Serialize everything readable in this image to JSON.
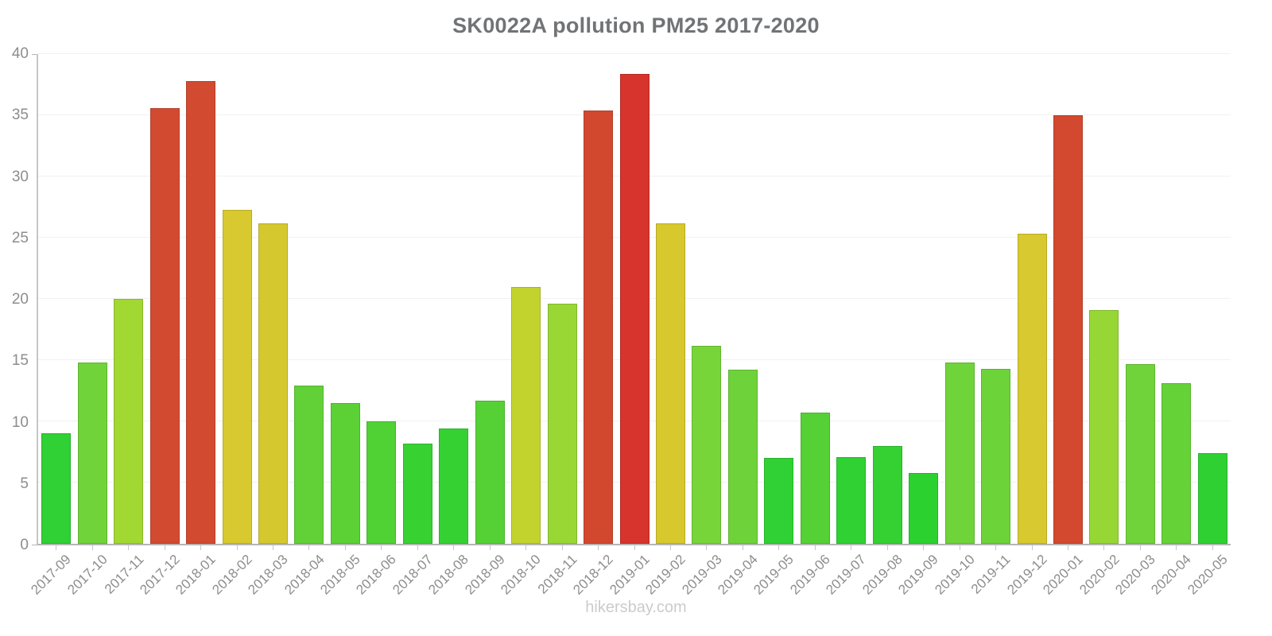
{
  "title": "SK0022A pollution PM25 2017-2020",
  "watermark": "hikersbay.com",
  "colors": {
    "title_text": "#717375",
    "axis_label_text": "#8d8d8d",
    "y_axis_line": "#c6c6c6",
    "x_axis_line": "#b5b5b5",
    "gridline": "#f1f1f1",
    "watermark_text": "#cbcbcb",
    "low_value_green": "#2bd12f",
    "mid_value_yellow": "#d7c92f",
    "high_value_red": "#d24b31"
  },
  "chart_data": {
    "type": "bar",
    "title": "SK0022A pollution PM25 2017-2020",
    "xlabel": "",
    "ylabel": "",
    "ylim": [
      0,
      40
    ],
    "yticks": [
      0,
      5,
      10,
      15,
      20,
      25,
      30,
      35,
      40
    ],
    "grid": "horizontal",
    "legend_position": "none",
    "categories": [
      "2017-09",
      "2017-10",
      "2017-11",
      "2017-12",
      "2018-01",
      "2018-02",
      "2018-03",
      "2018-04",
      "2018-05",
      "2018-06",
      "2018-07",
      "2018-08",
      "2018-09",
      "2018-10",
      "2018-11",
      "2018-12",
      "2019-01",
      "2019-02",
      "2019-03",
      "2019-04",
      "2019-05",
      "2019-06",
      "2019-07",
      "2019-08",
      "2019-09",
      "2019-10",
      "2019-11",
      "2019-12",
      "2020-01",
      "2020-02",
      "2020-03",
      "2020-04",
      "2020-05"
    ],
    "values": [
      9.0,
      14.8,
      20.0,
      35.6,
      37.8,
      27.3,
      26.2,
      12.9,
      11.5,
      10.0,
      8.2,
      9.4,
      11.7,
      21.0,
      19.6,
      35.4,
      38.4,
      26.2,
      16.2,
      14.2,
      7.0,
      10.7,
      7.1,
      8.0,
      5.8,
      14.8,
      14.3,
      25.3,
      35.0,
      19.1,
      14.7,
      13.1,
      7.4
    ],
    "bar_colors": [
      "#2fd134",
      "#70d33a",
      "#a2d832",
      "#d24b31",
      "#d24b31",
      "#d7c92f",
      "#d5c82f",
      "#62d138",
      "#5bd136",
      "#50d134",
      "#38d132",
      "#35d133",
      "#55d135",
      "#c3d32e",
      "#98d734",
      "#d2482f",
      "#d6342c",
      "#d7c82e",
      "#77d539",
      "#6ed33a",
      "#2fd134",
      "#55d135",
      "#2fd133",
      "#35d132",
      "#2bd12f",
      "#6fd33a",
      "#6cd339",
      "#d7c92f",
      "#d2492f",
      "#97d735",
      "#70d33a",
      "#65d238",
      "#2fd132"
    ]
  }
}
